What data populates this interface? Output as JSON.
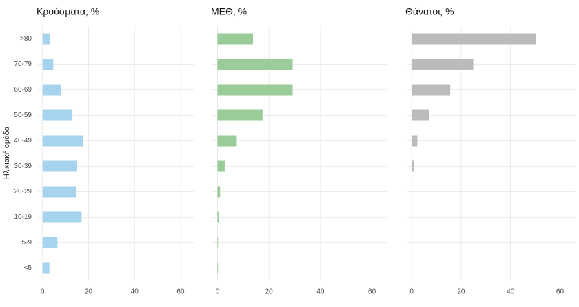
{
  "chart_data": {
    "type": "bar",
    "ylabel": "Ηλικιακή ομάδα",
    "categories": [
      ">80",
      "70-79",
      "60-69",
      "50-59",
      "40-49",
      "30-39",
      "20-29",
      "10-19",
      "5-9",
      "<5"
    ],
    "panels": [
      {
        "title": "Κρούσματα, %",
        "color": "#a6d3ee",
        "values": [
          3.3,
          4.7,
          8,
          13,
          17.5,
          15,
          14.5,
          17,
          6.5,
          3
        ],
        "xlim": [
          -2,
          66
        ],
        "xticks": [
          0,
          20,
          40,
          60
        ]
      },
      {
        "title": "ΜΕΘ, %",
        "color": "#99cc99",
        "values": [
          13.8,
          29.2,
          29.2,
          17.5,
          7.5,
          2.8,
          1,
          0.5,
          0.2,
          0.2
        ],
        "xlim": [
          -2,
          66
        ],
        "xticks": [
          0,
          20,
          40,
          60
        ]
      },
      {
        "title": "Θάνατοι, %",
        "color": "#bbbbbb",
        "values": [
          50.2,
          24.9,
          15.6,
          7.1,
          2.3,
          0.8,
          0.2,
          0.2,
          0.1,
          0.2
        ],
        "xlim": [
          -2,
          66
        ],
        "xticks": [
          0,
          20,
          40,
          60
        ]
      }
    ]
  }
}
